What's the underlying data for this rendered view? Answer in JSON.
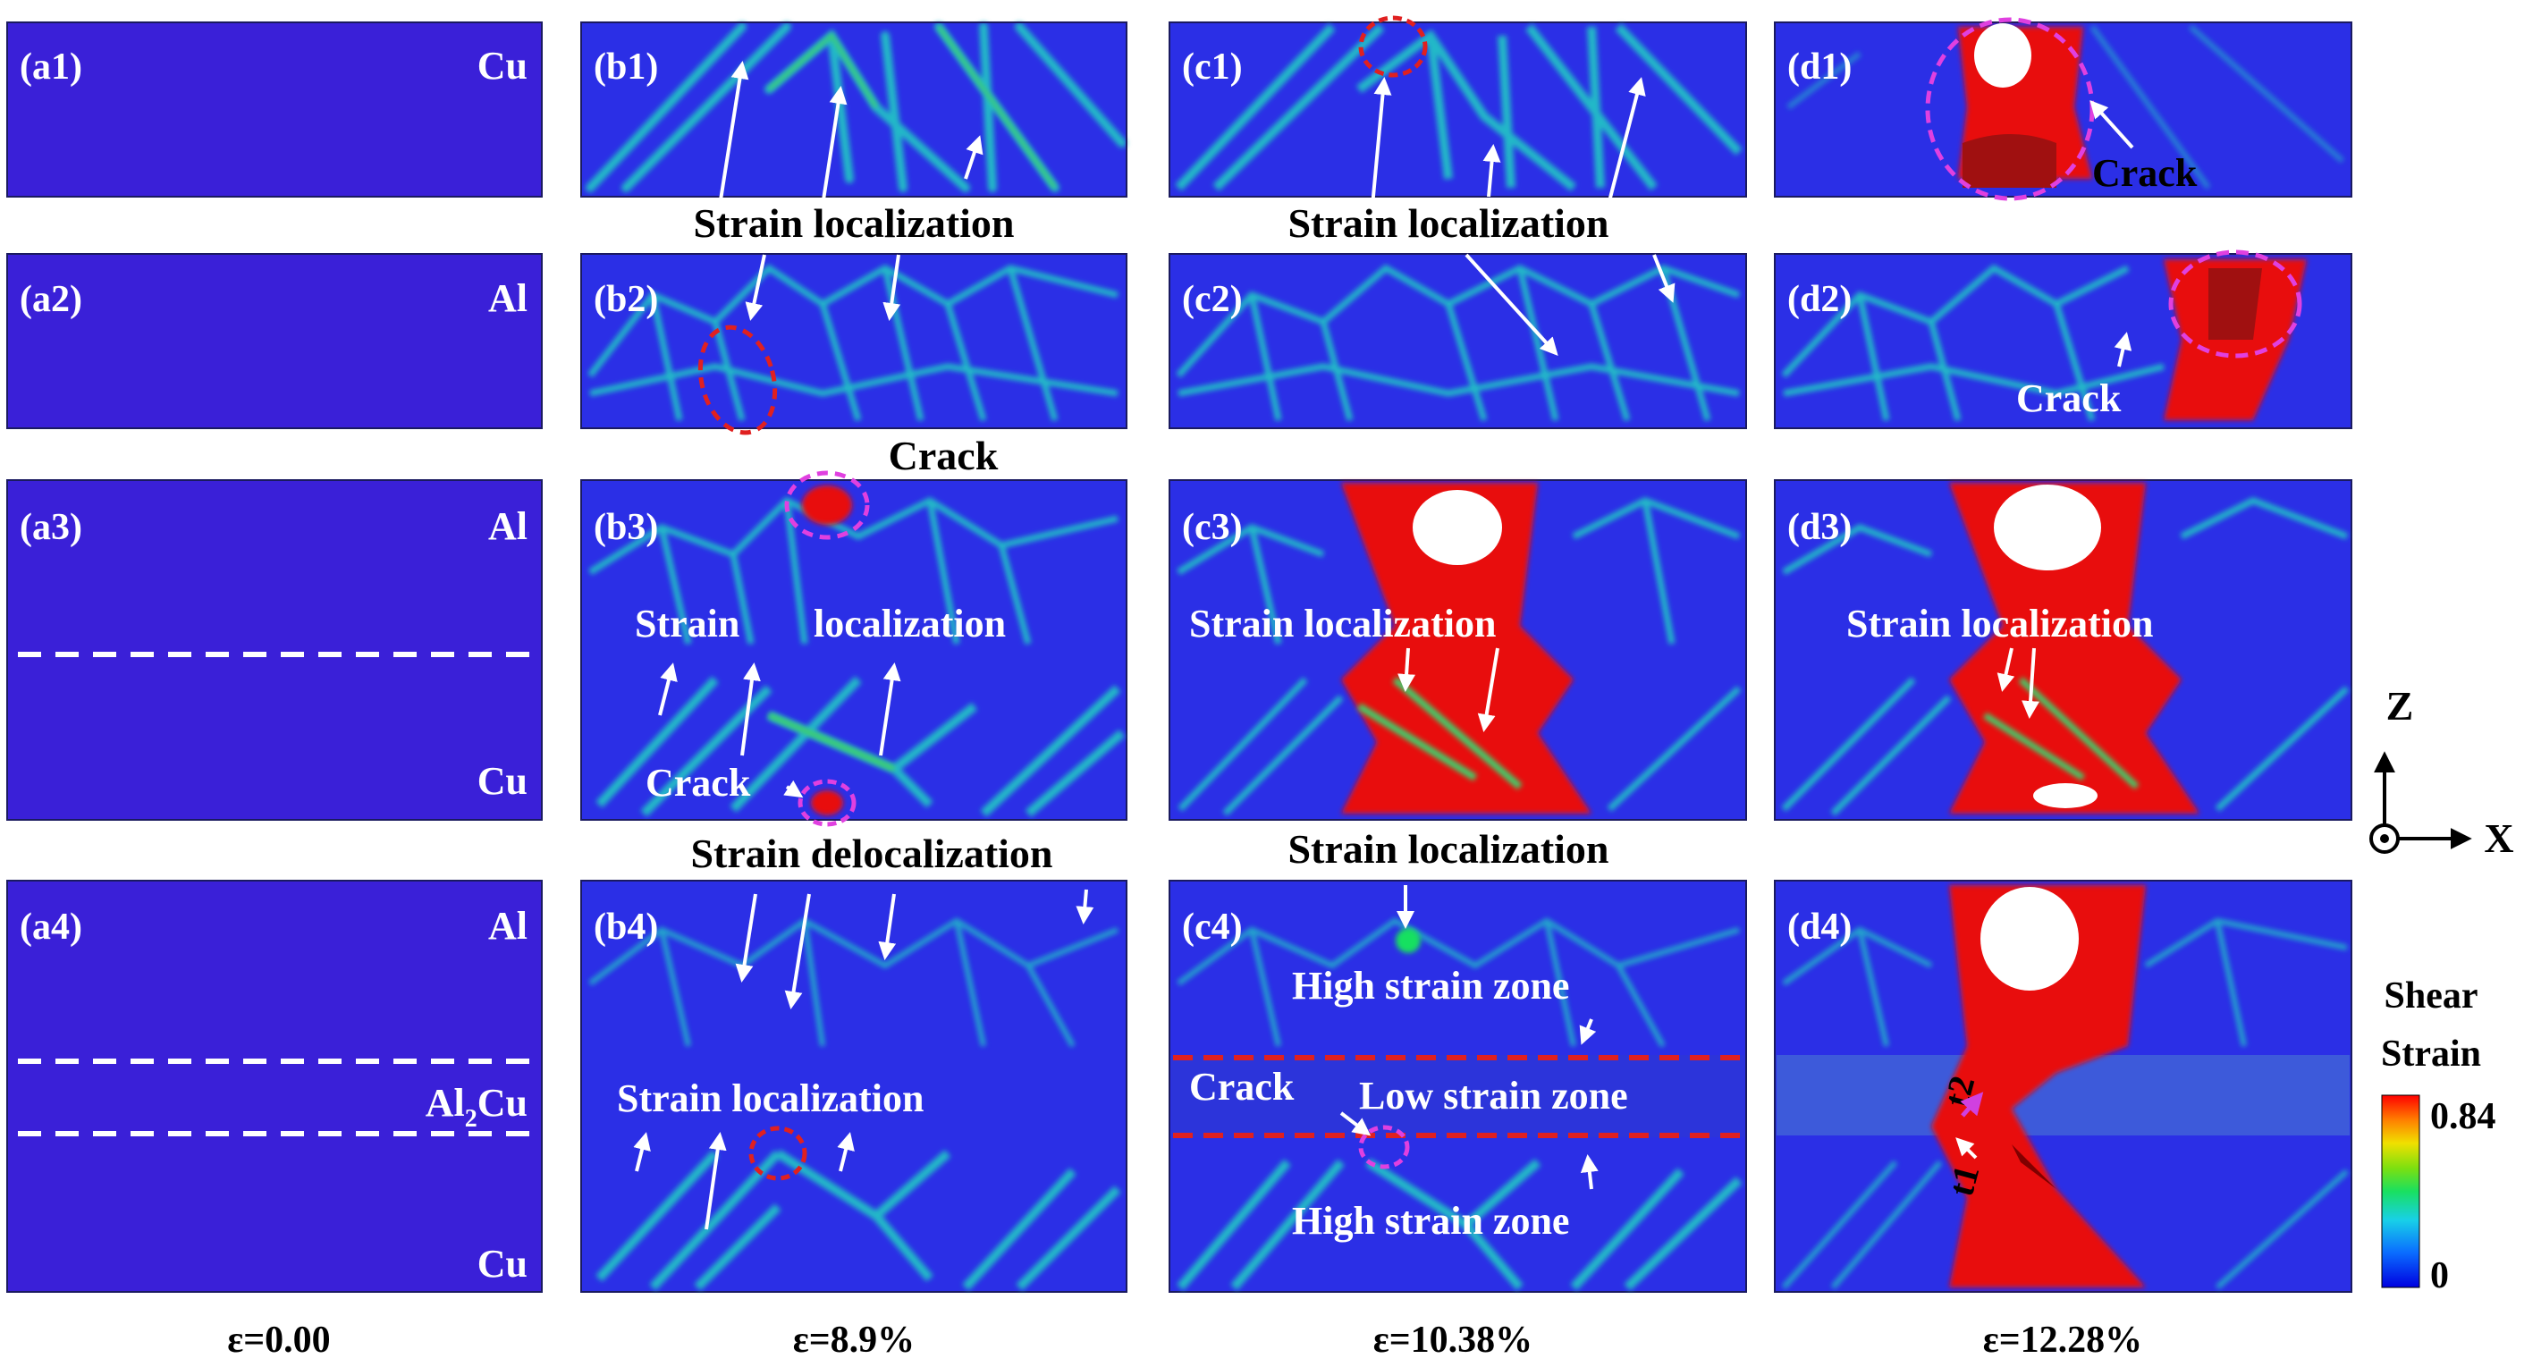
{
  "panels": {
    "a1": {
      "label": "(a1)",
      "material": "Cu"
    },
    "a2": {
      "label": "(a2)",
      "material": "Al"
    },
    "a3": {
      "label": "(a3)",
      "material_top": "Al",
      "material_bottom": "Cu"
    },
    "a4": {
      "label": "(a4)",
      "material_top": "Al",
      "material_mid_base": "Al",
      "material_mid_sub": "2",
      "material_mid_tail": "Cu",
      "material_bottom": "Cu"
    },
    "b1": {
      "label": "(b1)"
    },
    "b2": {
      "label": "(b2)"
    },
    "b3": {
      "label": "(b3)"
    },
    "b4": {
      "label": "(b4)"
    },
    "c1": {
      "label": "(c1)"
    },
    "c2": {
      "label": "(c2)"
    },
    "c3": {
      "label": "(c3)"
    },
    "c4": {
      "label": "(c4)"
    },
    "d1": {
      "label": "(d1)"
    },
    "d2": {
      "label": "(d2)"
    },
    "d3": {
      "label": "(d3)"
    },
    "d4": {
      "label": "(d4)"
    }
  },
  "annotations": {
    "strain_localization": "Strain localization",
    "strain": "Strain",
    "localization": "localization",
    "strain_delocalization": "Strain delocalization",
    "crack": "Crack",
    "high_strain_zone": "High strain zone",
    "low_strain_zone": "Low strain zone",
    "t1": "t1",
    "t2": "t2"
  },
  "strain_values": [
    "ε=0.00",
    "ε=8.9%",
    "ε=10.38%",
    "ε=12.28%"
  ],
  "axes": {
    "z": "Z",
    "x": "X"
  },
  "colorbar": {
    "title_line1": "Shear",
    "title_line2": "Strain",
    "max_label": "0.84",
    "min_label": "0",
    "max_value": 0.84,
    "min_value": 0,
    "colors": [
      "#0000e0",
      "#0a6cff",
      "#18d0e8",
      "#19e060",
      "#7ce010",
      "#f0e000",
      "#ff8000",
      "#ff0000"
    ]
  },
  "colors": {
    "background_field": "#2b2fe6",
    "undeformed_field": "#3a20d8",
    "band_cyan": "#21b8c8",
    "band_green": "#3fcf6a",
    "high_strain_red": "#e81010",
    "dashed_red": "#e02020",
    "dashed_magenta": "#e040e0",
    "arrow_white": "#ffffff"
  }
}
